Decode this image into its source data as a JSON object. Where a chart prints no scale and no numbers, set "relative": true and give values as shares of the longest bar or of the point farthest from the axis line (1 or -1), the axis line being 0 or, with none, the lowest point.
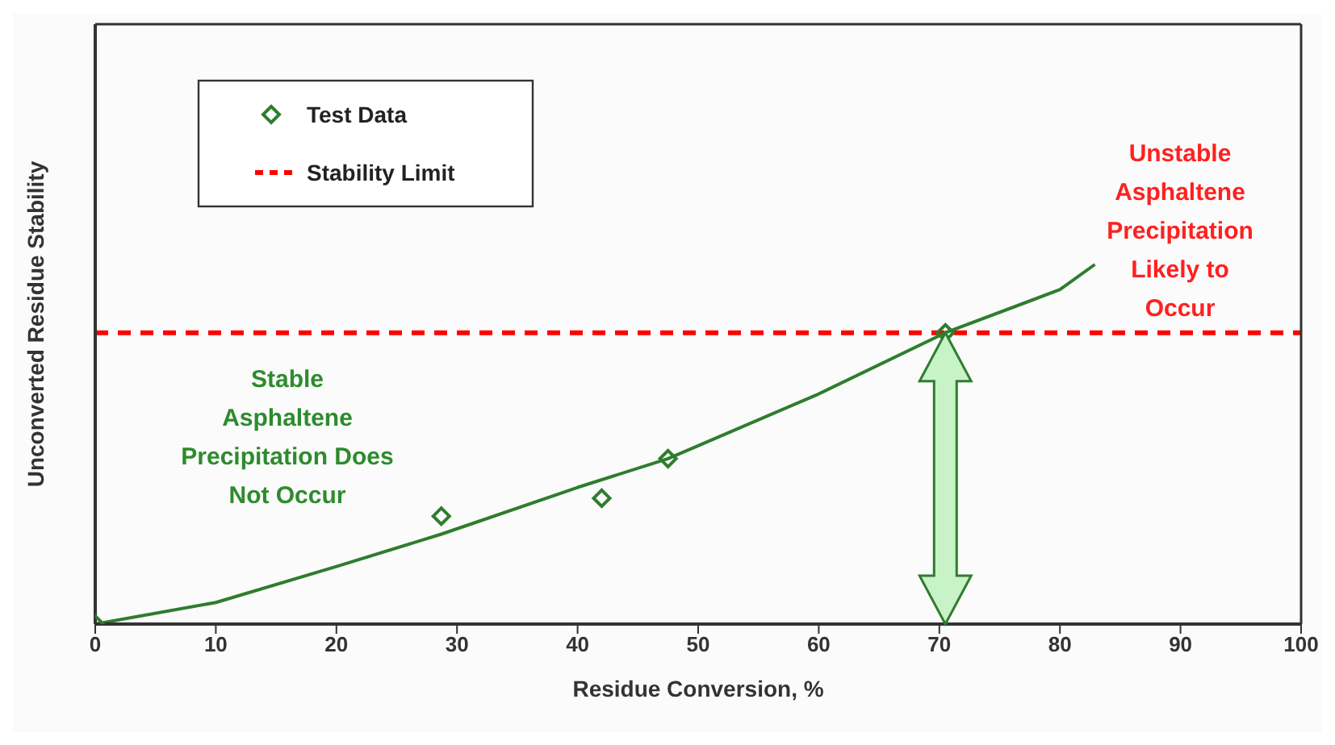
{
  "chart_data": {
    "type": "line",
    "xlabel": "Residue Conversion, %",
    "ylabel": "Unconverted Residue Stability",
    "relative": true,
    "xlim": [
      0,
      100
    ],
    "xticks": [
      0,
      10,
      20,
      30,
      40,
      50,
      60,
      70,
      80,
      90,
      100
    ],
    "tick_labels": "x",
    "legend": "top left",
    "series": [
      {
        "name": "Test Data",
        "type": "scatter",
        "marker": "diamond",
        "color": "#2e7d2e",
        "x": [
          0,
          28.7,
          42,
          47.5,
          70.5
        ],
        "values": [
          0,
          0.3,
          0.35,
          0.46,
          0.81
        ]
      },
      {
        "marker": "none",
        "color": "#2e7d2e",
        "x": [
          0,
          10,
          20,
          28.7,
          40,
          47.5,
          60,
          70.5,
          80,
          82.9
        ],
        "values": [
          0,
          0.06,
          0.16,
          0.25,
          0.38,
          0.46,
          0.64,
          0.81,
          0.93,
          1
        ]
      }
    ],
    "ref_lines": [
      {
        "axis": "y",
        "value": 0.81,
        "label": "Stability Limit",
        "color": "#ff0000",
        "line_style": "dashed"
      }
    ],
    "annotations": [
      "Stable\nAsphaltene\nPrecipitation Does\nNot Occur",
      "Unstable\nAsphaltene\nPrecipitation\nLikely to\nOccur"
    ]
  }
}
